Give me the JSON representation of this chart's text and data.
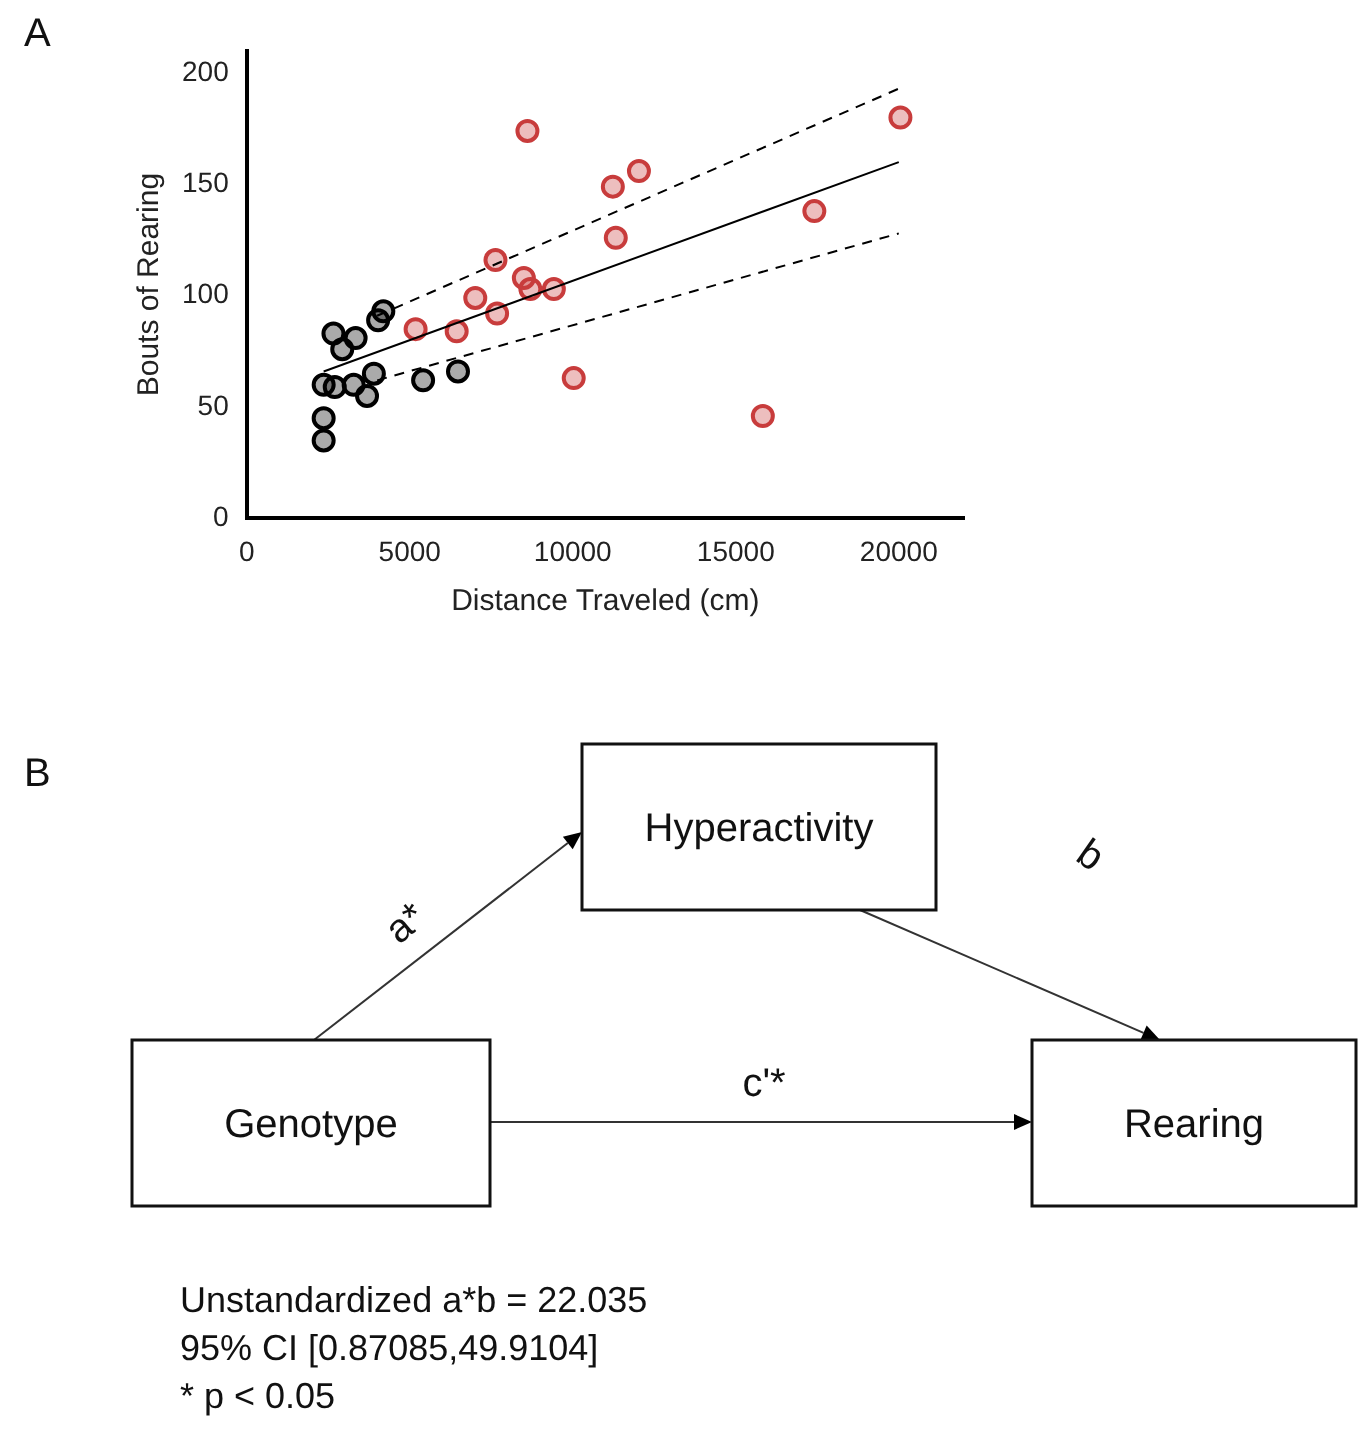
{
  "chart_data": [
    {
      "type": "scatter",
      "title": "A",
      "xlabel": "Distance Traveled (cm)",
      "ylabel": "Bouts of Rearing",
      "xlim": [
        0,
        22000
      ],
      "ylim": [
        0,
        210
      ],
      "xticks": [
        0,
        5000,
        10000,
        15000,
        20000
      ],
      "yticks": [
        0,
        50,
        100,
        150,
        200
      ],
      "grid": false,
      "legend": false,
      "marker": "circle",
      "series": [
        {
          "color": "#000000",
          "x": [
            2360,
            2360,
            2360,
            2660,
            2700,
            2930,
            3340,
            3280,
            3690,
            3900,
            4030,
            4190,
            5410,
            6480
          ],
          "values": [
            60,
            45,
            35,
            83,
            59,
            76,
            81,
            60,
            55,
            65,
            89,
            93,
            62,
            66
          ]
        },
        {
          "color": "#c83c3c",
          "x": [
            5180,
            6440,
            7010,
            7630,
            7680,
            8610,
            8500,
            8700,
            9420,
            10030,
            11230,
            11320,
            12030,
            15830,
            17410,
            20050
          ],
          "values": [
            85,
            84,
            99,
            116,
            92,
            174,
            108,
            103,
            103,
            63,
            149,
            126,
            156,
            46,
            138,
            180
          ]
        },
        {
          "type": "line",
          "color": "#000000",
          "marker": "none",
          "line_style": "solid",
          "x": [
            2360,
            20000
          ],
          "values": [
            66,
            160
          ]
        },
        {
          "type": "line",
          "color": "#000000",
          "marker": "none",
          "line_style": "dashed",
          "x": [
            4000,
            20000
          ],
          "values": [
            91,
            193
          ]
        },
        {
          "type": "line",
          "color": "#000000",
          "marker": "none",
          "line_style": "dashed",
          "x": [
            4000,
            20000
          ],
          "values": [
            62,
            128
          ]
        }
      ]
    },
    {
      "type": "other",
      "title": "B",
      "annotations": [
        "Hyperactivity",
        "Genotype",
        "Rearing",
        "a*",
        "b",
        "c'*",
        "Unstandardized a*b = 22.035",
        "95% CI [0.87085,49.9104]",
        "* p < 0.05"
      ]
    }
  ]
}
